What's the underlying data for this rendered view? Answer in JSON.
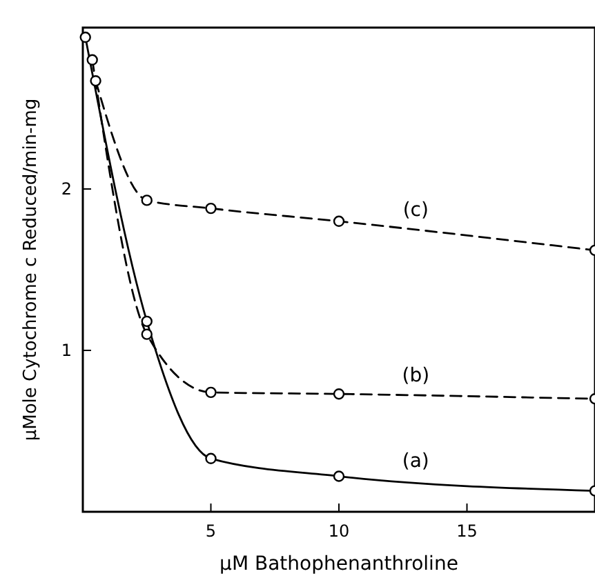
{
  "chart_data": {
    "type": "line",
    "xlabel": "μM Bathophenanthroline",
    "ylabel": "μMole Cytochrome c Reduced/min-mg",
    "xlim": [
      0,
      20
    ],
    "ylim": [
      0,
      3
    ],
    "xticks": [
      5,
      10,
      15
    ],
    "yticks": [
      1,
      2
    ],
    "marker": "circle",
    "series": [
      {
        "name": "(a)",
        "color": "#000000",
        "line_style": "solid",
        "x": [
          0.1,
          2.5,
          5,
          10,
          20
        ],
        "values": [
          2.94,
          1.18,
          0.33,
          0.22,
          0.13
        ]
      },
      {
        "name": "(b)",
        "color": "#000000",
        "line_style": "dashed",
        "x": [
          0.37,
          2.5,
          5,
          10,
          20
        ],
        "values": [
          2.8,
          1.1,
          0.74,
          0.73,
          0.7
        ]
      },
      {
        "name": "(c)",
        "color": "#000000",
        "line_style": "dashed",
        "x": [
          0.5,
          2.5,
          5,
          10,
          20
        ],
        "values": [
          2.67,
          1.93,
          1.88,
          1.8,
          1.62
        ]
      }
    ]
  }
}
